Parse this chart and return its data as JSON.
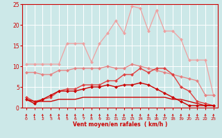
{
  "x": [
    0,
    1,
    2,
    3,
    4,
    5,
    6,
    7,
    8,
    9,
    10,
    11,
    12,
    13,
    14,
    15,
    16,
    17,
    18,
    19,
    20,
    21,
    22,
    23
  ],
  "series": [
    {
      "label": "line1_lightest",
      "color": "#f0a0a0",
      "linewidth": 0.9,
      "markersize": 2.5,
      "marker": "D",
      "y": [
        10.5,
        10.5,
        10.5,
        10.5,
        10.5,
        15.5,
        15.5,
        15.5,
        11.0,
        15.5,
        18.0,
        21.0,
        18.0,
        24.5,
        24.0,
        18.5,
        23.5,
        18.5,
        18.5,
        16.5,
        11.5,
        11.5,
        11.5,
        3.0
      ]
    },
    {
      "label": "line2_light",
      "color": "#e88080",
      "linewidth": 0.9,
      "markersize": 2.5,
      "marker": "D",
      "y": [
        8.5,
        8.5,
        8.0,
        8.0,
        9.0,
        9.0,
        9.5,
        9.5,
        9.5,
        9.5,
        10.0,
        9.5,
        9.5,
        10.5,
        10.0,
        9.5,
        9.0,
        8.5,
        8.0,
        7.5,
        7.0,
        6.5,
        3.0,
        3.0
      ]
    },
    {
      "label": "line3_medium",
      "color": "#e04040",
      "linewidth": 1.0,
      "markersize": 2.5,
      "marker": "D",
      "y": [
        2.5,
        1.5,
        2.0,
        2.5,
        4.0,
        4.5,
        4.5,
        5.5,
        5.5,
        5.5,
        6.5,
        6.5,
        8.0,
        8.0,
        9.5,
        8.5,
        9.5,
        9.5,
        8.0,
        5.0,
        4.0,
        1.5,
        1.0,
        0.5
      ]
    },
    {
      "label": "line4_step",
      "color": "#cc0000",
      "linewidth": 1.0,
      "markersize": 0,
      "marker": "",
      "y": [
        2.0,
        1.5,
        1.5,
        1.5,
        2.0,
        2.0,
        2.0,
        2.5,
        2.5,
        2.5,
        2.5,
        2.5,
        2.5,
        2.5,
        2.5,
        2.5,
        2.5,
        2.5,
        2.0,
        2.0,
        1.5,
        1.0,
        0.5,
        0.5
      ]
    },
    {
      "label": "line5_dark",
      "color": "#cc0000",
      "linewidth": 1.0,
      "markersize": 2.5,
      "marker": "D",
      "y": [
        2.0,
        1.0,
        2.0,
        3.0,
        4.0,
        4.0,
        4.0,
        4.5,
        5.0,
        5.0,
        5.5,
        5.0,
        5.5,
        5.5,
        6.0,
        5.5,
        4.5,
        3.5,
        2.5,
        1.5,
        0.5,
        0.5,
        0.5,
        0.5
      ]
    }
  ],
  "xlabel": "Vent moyen/en rafales  ( km/h )",
  "xlim": [
    -0.5,
    23.5
  ],
  "ylim": [
    0,
    25
  ],
  "yticks": [
    0,
    5,
    10,
    15,
    20,
    25
  ],
  "xticks": [
    0,
    1,
    2,
    3,
    4,
    5,
    6,
    7,
    8,
    9,
    10,
    11,
    12,
    13,
    14,
    15,
    16,
    17,
    18,
    19,
    20,
    21,
    22,
    23
  ],
  "background_color": "#cce8e8",
  "grid_color": "#ffffff",
  "text_color": "#cc0000",
  "tick_color": "#cc0000",
  "spine_color": "#cc0000"
}
